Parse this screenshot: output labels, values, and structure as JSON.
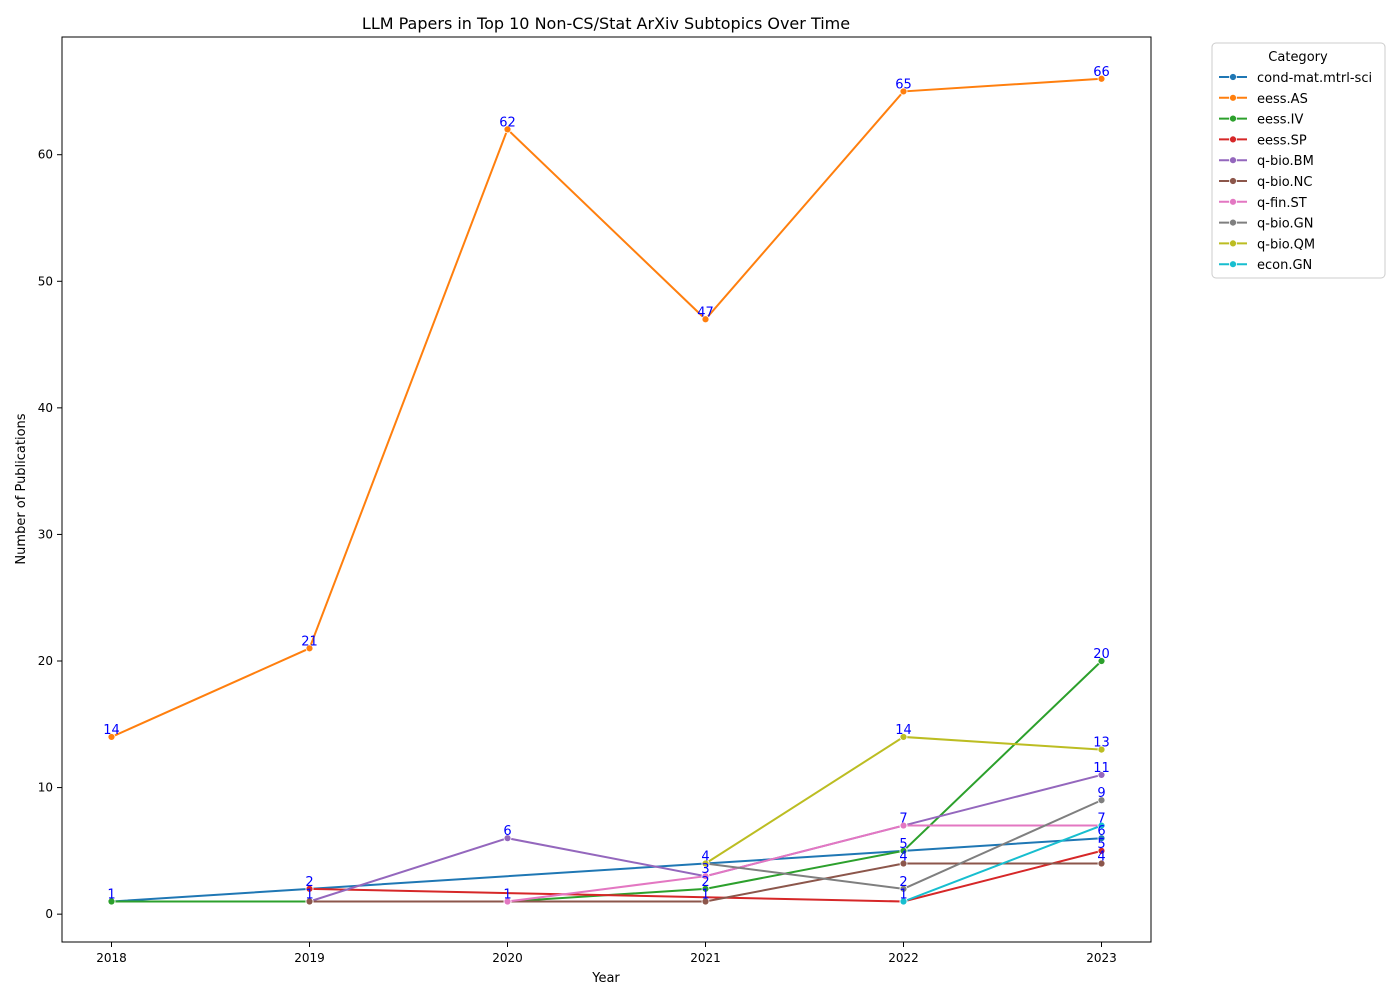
{
  "chart_data": {
    "type": "line",
    "title": "LLM Papers in Top 10 Non-CS/Stat ArXiv Subtopics Over Time",
    "xlabel": "Year",
    "ylabel": "Number of Publications",
    "x": [
      2018,
      2019,
      2020,
      2021,
      2022,
      2023
    ],
    "xlim": [
      2017.75,
      2023.25
    ],
    "ylim": [
      -2.2,
      69.3
    ],
    "yticks": [
      0,
      10,
      20,
      30,
      40,
      50,
      60
    ],
    "grid": false,
    "legend": {
      "title": "Category",
      "placement": "outside-top-right"
    },
    "series": [
      {
        "name": "cond-mat.mtrl-sci",
        "color": "#1f77b4",
        "points": [
          [
            2018,
            1
          ],
          [
            2019,
            2
          ],
          [
            2020,
            null
          ],
          [
            2021,
            4
          ],
          [
            2022,
            5
          ],
          [
            2023,
            6
          ]
        ],
        "line": [
          [
            2018,
            1
          ],
          [
            2019,
            2
          ],
          [
            2021,
            4
          ],
          [
            2022,
            5
          ],
          [
            2023,
            6
          ]
        ]
      },
      {
        "name": "eess.AS",
        "color": "#ff7f0e",
        "points": [
          [
            2018,
            14
          ],
          [
            2019,
            21
          ],
          [
            2020,
            62
          ],
          [
            2021,
            47
          ],
          [
            2022,
            65
          ],
          [
            2023,
            66
          ]
        ],
        "line": [
          [
            2018,
            14
          ],
          [
            2019,
            21
          ],
          [
            2020,
            62
          ],
          [
            2021,
            47
          ],
          [
            2022,
            65
          ],
          [
            2023,
            66
          ]
        ]
      },
      {
        "name": "eess.IV",
        "color": "#2ca02c",
        "points": [
          [
            2018,
            1
          ],
          [
            2019,
            1
          ],
          [
            2020,
            1
          ],
          [
            2021,
            2
          ],
          [
            2022,
            5
          ],
          [
            2023,
            20
          ]
        ],
        "line": [
          [
            2018,
            1
          ],
          [
            2019,
            1
          ],
          [
            2020,
            1
          ],
          [
            2021,
            2
          ],
          [
            2022,
            5
          ],
          [
            2023,
            20
          ]
        ]
      },
      {
        "name": "eess.SP",
        "color": "#d62728",
        "points": [
          [
            2019,
            2
          ],
          [
            2022,
            1
          ],
          [
            2023,
            5
          ]
        ],
        "line": [
          [
            2019,
            2
          ],
          [
            2022,
            1
          ],
          [
            2023,
            5
          ]
        ]
      },
      {
        "name": "q-bio.BM",
        "color": "#9467bd",
        "points": [
          [
            2019,
            1
          ],
          [
            2020,
            6
          ],
          [
            2021,
            3
          ],
          [
            2022,
            7
          ],
          [
            2023,
            11
          ]
        ],
        "line": [
          [
            2019,
            1
          ],
          [
            2020,
            6
          ],
          [
            2021,
            3
          ],
          [
            2022,
            7
          ],
          [
            2023,
            11
          ]
        ]
      },
      {
        "name": "q-bio.NC",
        "color": "#8c564b",
        "points": [
          [
            2019,
            1
          ],
          [
            2021,
            1
          ],
          [
            2022,
            4
          ],
          [
            2023,
            4
          ]
        ],
        "line": [
          [
            2019,
            1
          ],
          [
            2021,
            1
          ],
          [
            2022,
            4
          ],
          [
            2023,
            4
          ]
        ]
      },
      {
        "name": "q-fin.ST",
        "color": "#e377c2",
        "points": [
          [
            2020,
            1
          ],
          [
            2021,
            3
          ],
          [
            2022,
            7
          ],
          [
            2023,
            7
          ]
        ],
        "line": [
          [
            2020,
            1
          ],
          [
            2021,
            3
          ],
          [
            2022,
            7
          ],
          [
            2023,
            7
          ]
        ]
      },
      {
        "name": "q-bio.GN",
        "color": "#7f7f7f",
        "points": [
          [
            2021,
            4
          ],
          [
            2022,
            2
          ],
          [
            2023,
            9
          ]
        ],
        "line": [
          [
            2021,
            4
          ],
          [
            2022,
            2
          ],
          [
            2023,
            9
          ]
        ]
      },
      {
        "name": "q-bio.QM",
        "color": "#bcbd22",
        "points": [
          [
            2021,
            4
          ],
          [
            2022,
            14
          ],
          [
            2023,
            13
          ]
        ],
        "line": [
          [
            2021,
            4
          ],
          [
            2022,
            14
          ],
          [
            2023,
            13
          ]
        ]
      },
      {
        "name": "econ.GN",
        "color": "#17becf",
        "points": [
          [
            2022,
            1
          ],
          [
            2023,
            7
          ]
        ],
        "line": [
          [
            2022,
            1
          ],
          [
            2023,
            7
          ]
        ]
      }
    ],
    "data_labels": [
      {
        "x": 2018,
        "y": 14,
        "text": "14"
      },
      {
        "x": 2019,
        "y": 21,
        "text": "21"
      },
      {
        "x": 2020,
        "y": 62,
        "text": "62"
      },
      {
        "x": 2021,
        "y": 47,
        "text": "47"
      },
      {
        "x": 2022,
        "y": 65,
        "text": "65"
      },
      {
        "x": 2023,
        "y": 66,
        "text": "66"
      },
      {
        "x": 2018,
        "y": 1,
        "text": "1"
      },
      {
        "x": 2019,
        "y": 2,
        "text": "2"
      },
      {
        "x": 2019,
        "y": 1,
        "text": "1"
      },
      {
        "x": 2020,
        "y": 6,
        "text": "6"
      },
      {
        "x": 2020,
        "y": 1,
        "text": "1"
      },
      {
        "x": 2021,
        "y": 4,
        "text": "4"
      },
      {
        "x": 2021,
        "y": 3,
        "text": "3"
      },
      {
        "x": 2021,
        "y": 2,
        "text": "2"
      },
      {
        "x": 2021,
        "y": 1,
        "text": "1"
      },
      {
        "x": 2022,
        "y": 14,
        "text": "14"
      },
      {
        "x": 2022,
        "y": 7,
        "text": "7"
      },
      {
        "x": 2022,
        "y": 5,
        "text": "5"
      },
      {
        "x": 2022,
        "y": 4,
        "text": "4"
      },
      {
        "x": 2022,
        "y": 2,
        "text": "2"
      },
      {
        "x": 2022,
        "y": 1,
        "text": "1"
      },
      {
        "x": 2023,
        "y": 20,
        "text": "20"
      },
      {
        "x": 2023,
        "y": 13,
        "text": "13"
      },
      {
        "x": 2023,
        "y": 11,
        "text": "11"
      },
      {
        "x": 2023,
        "y": 9,
        "text": "9"
      },
      {
        "x": 2023,
        "y": 7,
        "text": "7"
      },
      {
        "x": 2023,
        "y": 6,
        "text": "6"
      },
      {
        "x": 2023,
        "y": 5,
        "text": "5"
      },
      {
        "x": 2023,
        "y": 4,
        "text": "4"
      }
    ]
  }
}
